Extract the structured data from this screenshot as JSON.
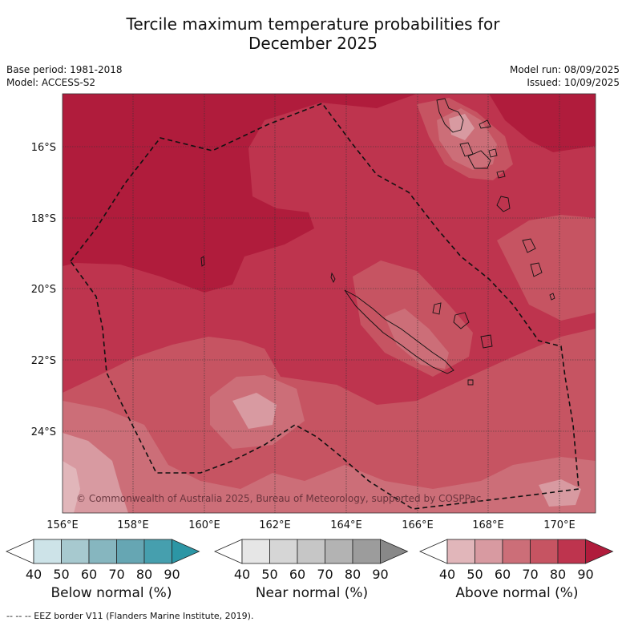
{
  "title_line1": "Tercile maximum temperature probabilities for",
  "title_line2": "December 2025",
  "meta_left": [
    "Base period: 1981-2018",
    "Model: ACCESS-S2"
  ],
  "meta_right": [
    "Model run: 08/09/2025",
    "Issued: 10/09/2025"
  ],
  "map": {
    "lon_labels": [
      "156°E",
      "158°E",
      "160°E",
      "162°E",
      "164°E",
      "166°E",
      "168°E",
      "170°E"
    ],
    "lat_labels": [
      "16°S",
      "18°S",
      "20°S",
      "22°S",
      "24°S"
    ],
    "copyright": "© Commonwealth of Australia 2025, Bureau of Meteorology, supported by COSPPac",
    "dominant_category": "Above normal",
    "colors": {
      "above_90": "#b01c3c",
      "above_80": "#be344e",
      "above_70": "#c65462",
      "above_60": "#cc6e78",
      "above_50": "#d89aa1",
      "above_40": "#e1b6ba"
    }
  },
  "colorbars": [
    {
      "name": "Below normal (%)",
      "ticks": [
        "40",
        "50",
        "60",
        "70",
        "80",
        "90"
      ],
      "colors": [
        "#ffffff",
        "#cde3e8",
        "#a7c9cf",
        "#86b6bf",
        "#66a6b3",
        "#469fae",
        "#2c96a5"
      ]
    },
    {
      "name": "Near normal (%)",
      "ticks": [
        "40",
        "50",
        "60",
        "70",
        "80",
        "90"
      ],
      "colors": [
        "#ffffff",
        "#e6e6e6",
        "#d6d6d6",
        "#c6c6c6",
        "#b3b3b3",
        "#9c9c9c",
        "#888888"
      ]
    },
    {
      "name": "Above normal (%)",
      "ticks": [
        "40",
        "50",
        "60",
        "70",
        "80",
        "90"
      ],
      "colors": [
        "#ffffff",
        "#e1b6ba",
        "#d89aa1",
        "#cc6e78",
        "#c65462",
        "#be344e",
        "#b01c3c"
      ]
    }
  ],
  "footer": "--  --  -- EEZ border V11 (Flanders Marine Institute, 2019)."
}
